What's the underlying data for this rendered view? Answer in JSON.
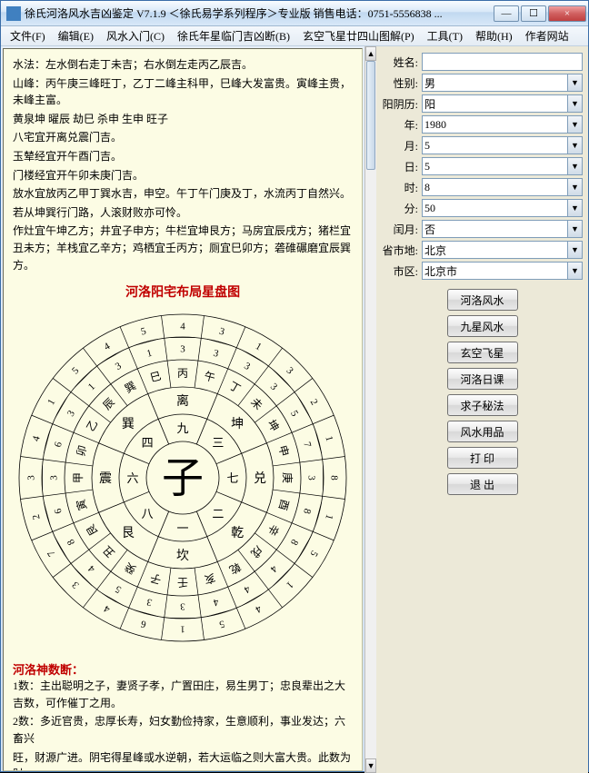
{
  "window": {
    "title": "徐氏河洛风水吉凶鉴定 V7.1.9  ＜徐氏易学系列程序＞专业版   销售电话：0751-5556838  ...",
    "min": "—",
    "max": "☐",
    "close": "×"
  },
  "menu": {
    "items": [
      "文件(F)",
      "编辑(E)",
      "风水入门(C)",
      "徐氏年星临门吉凶断(B)",
      "玄空飞星廿四山图解(P)",
      "工具(T)",
      "帮助(H)",
      "作者网站"
    ]
  },
  "body_text": {
    "l1": "水法：左水倒右走丁未吉；右水倒左走丙乙辰吉。",
    "l2": "山峰：丙午庚三峰旺丁，乙丁二峰主科甲，巳峰大发富贵。寅峰主贵，未峰主富。",
    "l3": "黄泉坤 曜辰 劫巳 杀申 生申 旺子",
    "l4": "八宅宜开离兑震门吉。",
    "l5": "玉辇经宜开午酉门吉。",
    "l6": "门楼经宜开午卯未庚门吉。",
    "l7": "放水宜放丙乙甲丁巽水吉，申空。午丁午门庚及丁，水流丙丁自然兴。",
    "l8": "若从坤巽行门路，人滚财败亦可怜。",
    "l9": "作灶宜午坤乙方；井宜子申方；牛栏宜坤艮方；马房宜辰戌方；猪栏宜丑未方；羊栈宜乙辛方；鸡栖宜壬丙方；厕宜巳卯方；砻碓碾磨宜辰巽方。"
  },
  "chart_title": "河洛阳宅布局星盘图",
  "compass": {
    "center": "子",
    "inner_ring": [
      "离",
      "坤",
      "兑",
      "乾",
      "坎",
      "艮",
      "震",
      "巽"
    ],
    "inner_nums": [
      "九",
      "三",
      "七",
      "二",
      "一",
      "八",
      "六",
      "四"
    ],
    "mid_ring_24": [
      "丙",
      "午",
      "丁",
      "未",
      "坤",
      "申",
      "庚",
      "酉",
      "辛",
      "戌",
      "乾",
      "亥",
      "壬",
      "子",
      "癸",
      "丑",
      "艮",
      "寅",
      "甲",
      "卯",
      "乙",
      "辰",
      "巽",
      "巳"
    ],
    "outer_fracs": [
      [
        "4",
        "3"
      ],
      [
        "3",
        "3"
      ],
      [
        "1",
        "3"
      ],
      [
        "3",
        "3"
      ],
      [
        "2",
        "5"
      ],
      [
        "1",
        "7"
      ],
      [
        "8",
        "3"
      ],
      [
        "1",
        "8"
      ],
      [
        "5",
        "8"
      ],
      [
        "1",
        "4"
      ],
      [
        "4",
        "4"
      ],
      [
        "5",
        "4"
      ],
      [
        "1",
        "3"
      ],
      [
        "6",
        "3"
      ],
      [
        "4",
        "5"
      ],
      [
        "3",
        "4"
      ],
      [
        "7",
        "8"
      ],
      [
        "2",
        "6"
      ],
      [
        "3",
        "3"
      ],
      [
        "4",
        "6"
      ],
      [
        "1",
        "3"
      ],
      [
        "5",
        "1"
      ],
      [
        "4",
        "3"
      ],
      [
        "5",
        "1"
      ]
    ],
    "colors": {
      "background": "#fcfce4",
      "lines": "#000000"
    }
  },
  "section2_title": "河洛神数断：",
  "section2": {
    "l1": "1数：主出聪明之子，妻贤子孝，广置田庄，易生男丁；忠良辈出之大吉数，可作催丁之用。",
    "l2": "2数：多近官贵，忠厚长寿，妇女勤俭持家，生意顺利，事业发达；六畜兴",
    "l3": "旺，财源广进。阴宅得星峰或水逆朝，若大运临之则大富大贵。此数为财"
  },
  "form": {
    "name_label": "姓名:",
    "name_value": "",
    "gender_label": "性别:",
    "gender_value": "男",
    "cal_label": "阳阴历:",
    "cal_value": "阳",
    "year_label": "年:",
    "year_value": "1980",
    "month_label": "月:",
    "month_value": "5",
    "day_label": "日:",
    "day_value": "5",
    "hour_label": "时:",
    "hour_value": "8",
    "min_label": "分:",
    "min_value": "50",
    "leap_label": "闰月:",
    "leap_value": "否",
    "prov_label": "省市地:",
    "prov_value": "北京",
    "city_label": "市区:",
    "city_value": "北京市"
  },
  "side_buttons": [
    "河洛风水",
    "九星风水",
    "玄空飞星",
    "河洛日课",
    "求子秘法",
    "风水用品",
    "打 印",
    "退 出"
  ]
}
